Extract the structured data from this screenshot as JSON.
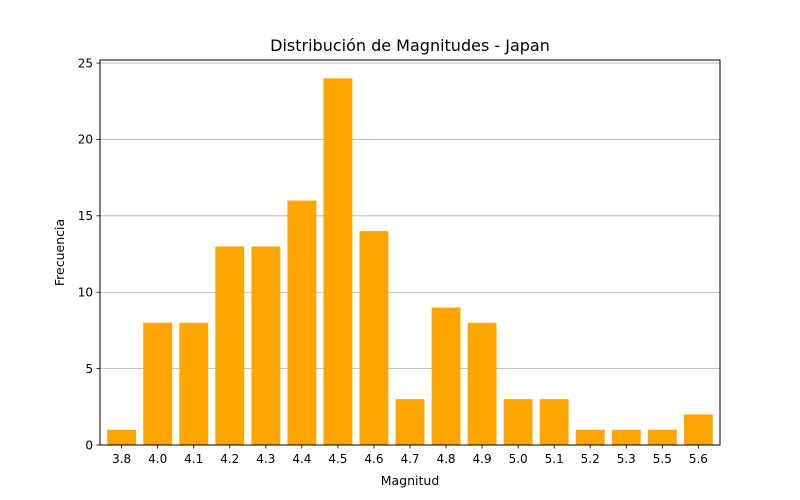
{
  "chart_data": {
    "type": "bar",
    "title": "Distribución de Magnitudes - Japan",
    "xlabel": "Magnitud",
    "ylabel": "Frecuencia",
    "categories": [
      "3.8",
      "4.0",
      "4.1",
      "4.2",
      "4.3",
      "4.4",
      "4.5",
      "4.6",
      "4.7",
      "4.8",
      "4.9",
      "5.0",
      "5.1",
      "5.2",
      "5.3",
      "5.5",
      "5.6"
    ],
    "values": [
      1,
      8,
      8,
      13,
      13,
      16,
      24,
      14,
      3,
      9,
      8,
      3,
      3,
      1,
      1,
      1,
      2
    ],
    "ylim": [
      0,
      25.2
    ],
    "yticks": [
      0,
      5,
      10,
      15,
      20,
      25
    ],
    "grid": "y",
    "bar_color": "#ffa500",
    "grid_color": "#b0b0b0"
  }
}
